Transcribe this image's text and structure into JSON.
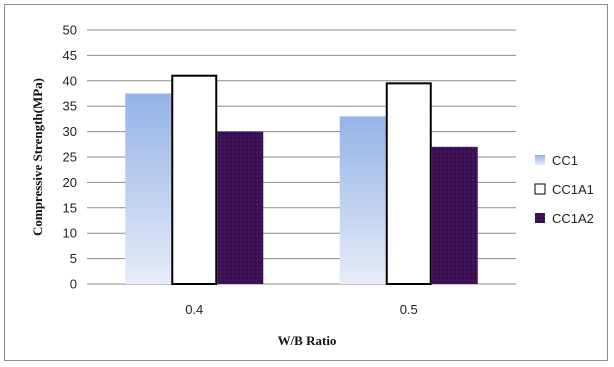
{
  "chart_data": {
    "type": "bar",
    "title": "",
    "xlabel": "W/B Ratio",
    "ylabel": "Compressive Strength(MPa)",
    "categories": [
      "0.4",
      "0.5"
    ],
    "series": [
      {
        "name": "CC1",
        "values": [
          37.5,
          33
        ]
      },
      {
        "name": "CC1A1",
        "values": [
          41,
          39.5
        ]
      },
      {
        "name": "CC1A2",
        "values": [
          30,
          27
        ]
      }
    ],
    "ylim": [
      0,
      50
    ],
    "yticks": [
      "0",
      "5",
      "10",
      "15",
      "20",
      "25",
      "30",
      "35",
      "40",
      "45",
      "50"
    ],
    "grid": true,
    "legend_position": "right",
    "colors": {
      "CC1_top": "#94b3e6",
      "CC1_bottom": "#e6ecf8",
      "CC1A1_fill": "#ffffff",
      "CC1A1_stroke": "#000000",
      "CC1A2_fill": "#3d0f55",
      "gridline": "#8a8a8a"
    }
  }
}
